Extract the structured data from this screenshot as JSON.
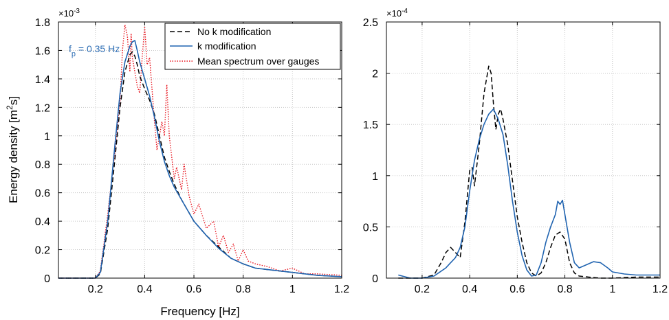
{
  "colors": {
    "no_k": "#000000",
    "k_mod": "#1f63b0",
    "mean": "#e8141e",
    "grid": "#c8c8c8"
  },
  "chart_data": [
    {
      "type": "line",
      "panel": "left",
      "xlabel": "Frequency [Hz]",
      "ylabel": "Energy density [m²s]",
      "ylabel_main": "Energy density [m",
      "ylabel_sup": "2",
      "ylabel_tail": "s]",
      "multiplier": "×10",
      "multiplier_exp": "-3",
      "xlim": [
        0.05,
        1.2
      ],
      "ylim": [
        0,
        1.8
      ],
      "xticks": [
        0.2,
        0.4,
        0.6,
        0.8,
        1.0,
        1.2
      ],
      "xticklabels": [
        "0.2",
        "0.4",
        "0.6",
        "0.8",
        "1",
        "1.2"
      ],
      "yticks": [
        0,
        0.2,
        0.4,
        0.6,
        0.8,
        1.0,
        1.2,
        1.4,
        1.6,
        1.8
      ],
      "yticklabels": [
        "0",
        "0.2",
        "0.4",
        "0.6",
        "0.8",
        "1",
        "1.2",
        "1.4",
        "1.6",
        "1.8"
      ],
      "grid": true,
      "legend_position": "top-right",
      "annotation": {
        "main": "f",
        "sub": "p",
        "rest": " = 0.35 Hz"
      },
      "series": [
        {
          "name": "No k modification",
          "style": "dashed",
          "x": [
            0.05,
            0.2,
            0.22,
            0.25,
            0.28,
            0.3,
            0.32,
            0.34,
            0.35,
            0.36,
            0.37,
            0.38,
            0.4,
            0.42,
            0.44,
            0.46,
            0.48,
            0.5,
            0.52,
            0.55,
            0.6,
            0.65,
            0.7,
            0.75,
            0.8,
            0.85,
            0.9,
            1.0,
            1.1,
            1.2
          ],
          "y": [
            0,
            0,
            0.03,
            0.35,
            0.85,
            1.2,
            1.45,
            1.57,
            1.59,
            1.56,
            1.5,
            1.42,
            1.33,
            1.25,
            1.15,
            1.0,
            0.85,
            0.75,
            0.66,
            0.55,
            0.4,
            0.3,
            0.22,
            0.14,
            0.1,
            0.07,
            0.06,
            0.04,
            0.02,
            0.01
          ]
        },
        {
          "name": "k modification",
          "style": "solid",
          "x": [
            0.05,
            0.2,
            0.22,
            0.25,
            0.28,
            0.3,
            0.32,
            0.34,
            0.35,
            0.36,
            0.37,
            0.38,
            0.4,
            0.42,
            0.44,
            0.46,
            0.48,
            0.5,
            0.52,
            0.55,
            0.6,
            0.65,
            0.7,
            0.75,
            0.8,
            0.85,
            0.9,
            1.0,
            1.1,
            1.2
          ],
          "y": [
            0,
            0,
            0.04,
            0.4,
            0.95,
            1.3,
            1.52,
            1.63,
            1.66,
            1.67,
            1.6,
            1.52,
            1.4,
            1.28,
            1.13,
            0.96,
            0.82,
            0.72,
            0.64,
            0.55,
            0.4,
            0.3,
            0.21,
            0.14,
            0.1,
            0.07,
            0.06,
            0.04,
            0.02,
            0.01
          ]
        },
        {
          "name": "Mean spectrum over gauges",
          "style": "dotted",
          "x": [
            0.05,
            0.2,
            0.22,
            0.25,
            0.28,
            0.3,
            0.31,
            0.32,
            0.33,
            0.34,
            0.345,
            0.35,
            0.36,
            0.37,
            0.38,
            0.39,
            0.4,
            0.41,
            0.42,
            0.44,
            0.45,
            0.46,
            0.47,
            0.48,
            0.49,
            0.5,
            0.52,
            0.53,
            0.55,
            0.56,
            0.58,
            0.6,
            0.62,
            0.65,
            0.68,
            0.7,
            0.72,
            0.74,
            0.76,
            0.78,
            0.8,
            0.82,
            0.85,
            0.9,
            0.95,
            1.0,
            1.05,
            1.1,
            1.2
          ],
          "y": [
            0,
            0,
            0.05,
            0.45,
            0.9,
            1.25,
            1.6,
            1.78,
            1.7,
            1.45,
            1.72,
            1.55,
            1.45,
            1.35,
            1.3,
            1.55,
            1.77,
            1.5,
            1.55,
            1.1,
            0.9,
            1.0,
            1.1,
            1.0,
            1.36,
            1.0,
            0.7,
            0.78,
            0.62,
            0.8,
            0.58,
            0.45,
            0.52,
            0.35,
            0.4,
            0.22,
            0.3,
            0.18,
            0.24,
            0.12,
            0.2,
            0.12,
            0.1,
            0.08,
            0.05,
            0.07,
            0.03,
            0.03,
            0.02
          ]
        }
      ]
    },
    {
      "type": "line",
      "panel": "right",
      "xlim": [
        0.05,
        1.2
      ],
      "ylim": [
        0,
        2.5
      ],
      "xticks": [
        0.2,
        0.4,
        0.6,
        0.8,
        1.0,
        1.2
      ],
      "xticklabels": [
        "0.2",
        "0.4",
        "0.6",
        "0.8",
        "1",
        "1.2"
      ],
      "yticks": [
        0,
        0.5,
        1.0,
        1.5,
        2.0,
        2.5
      ],
      "yticklabels": [
        "0",
        "0.5",
        "1",
        "1.5",
        "2",
        "2.5"
      ],
      "multiplier": "×10",
      "multiplier_exp": "-4",
      "grid": true,
      "series": [
        {
          "style": "dashed",
          "x": [
            0.1,
            0.15,
            0.2,
            0.25,
            0.28,
            0.3,
            0.32,
            0.34,
            0.36,
            0.38,
            0.4,
            0.41,
            0.42,
            0.44,
            0.46,
            0.48,
            0.49,
            0.5,
            0.51,
            0.52,
            0.53,
            0.54,
            0.56,
            0.58,
            0.6,
            0.62,
            0.64,
            0.66,
            0.68,
            0.7,
            0.72,
            0.74,
            0.76,
            0.78,
            0.8,
            0.82,
            0.84,
            0.86,
            0.9,
            0.95,
            1.0,
            1.1,
            1.2
          ],
          "y": [
            0,
            0,
            0,
            0.03,
            0.15,
            0.25,
            0.3,
            0.25,
            0.2,
            0.55,
            1.05,
            1.08,
            0.9,
            1.3,
            1.8,
            2.07,
            2.0,
            1.7,
            1.45,
            1.6,
            1.65,
            1.55,
            1.3,
            0.95,
            0.6,
            0.35,
            0.15,
            0.05,
            0.02,
            0.05,
            0.15,
            0.3,
            0.42,
            0.45,
            0.38,
            0.15,
            0.05,
            0.02,
            0.01,
            0.0,
            0.0,
            0.01,
            0.01
          ]
        },
        {
          "style": "solid",
          "x": [
            0.1,
            0.15,
            0.2,
            0.25,
            0.3,
            0.32,
            0.34,
            0.36,
            0.38,
            0.4,
            0.42,
            0.44,
            0.46,
            0.48,
            0.5,
            0.52,
            0.54,
            0.56,
            0.58,
            0.6,
            0.62,
            0.64,
            0.66,
            0.68,
            0.7,
            0.72,
            0.74,
            0.76,
            0.77,
            0.78,
            0.79,
            0.8,
            0.82,
            0.84,
            0.86,
            0.88,
            0.9,
            0.92,
            0.95,
            0.98,
            1.0,
            1.05,
            1.1,
            1.2
          ],
          "y": [
            0.03,
            0,
            0,
            0.02,
            0.1,
            0.15,
            0.2,
            0.3,
            0.5,
            0.85,
            1.15,
            1.35,
            1.5,
            1.6,
            1.65,
            1.55,
            1.4,
            1.1,
            0.75,
            0.45,
            0.22,
            0.08,
            0.02,
            0.03,
            0.15,
            0.35,
            0.5,
            0.62,
            0.75,
            0.72,
            0.76,
            0.62,
            0.35,
            0.15,
            0.1,
            0.12,
            0.14,
            0.16,
            0.15,
            0.1,
            0.06,
            0.04,
            0.03,
            0.03
          ]
        }
      ]
    }
  ]
}
